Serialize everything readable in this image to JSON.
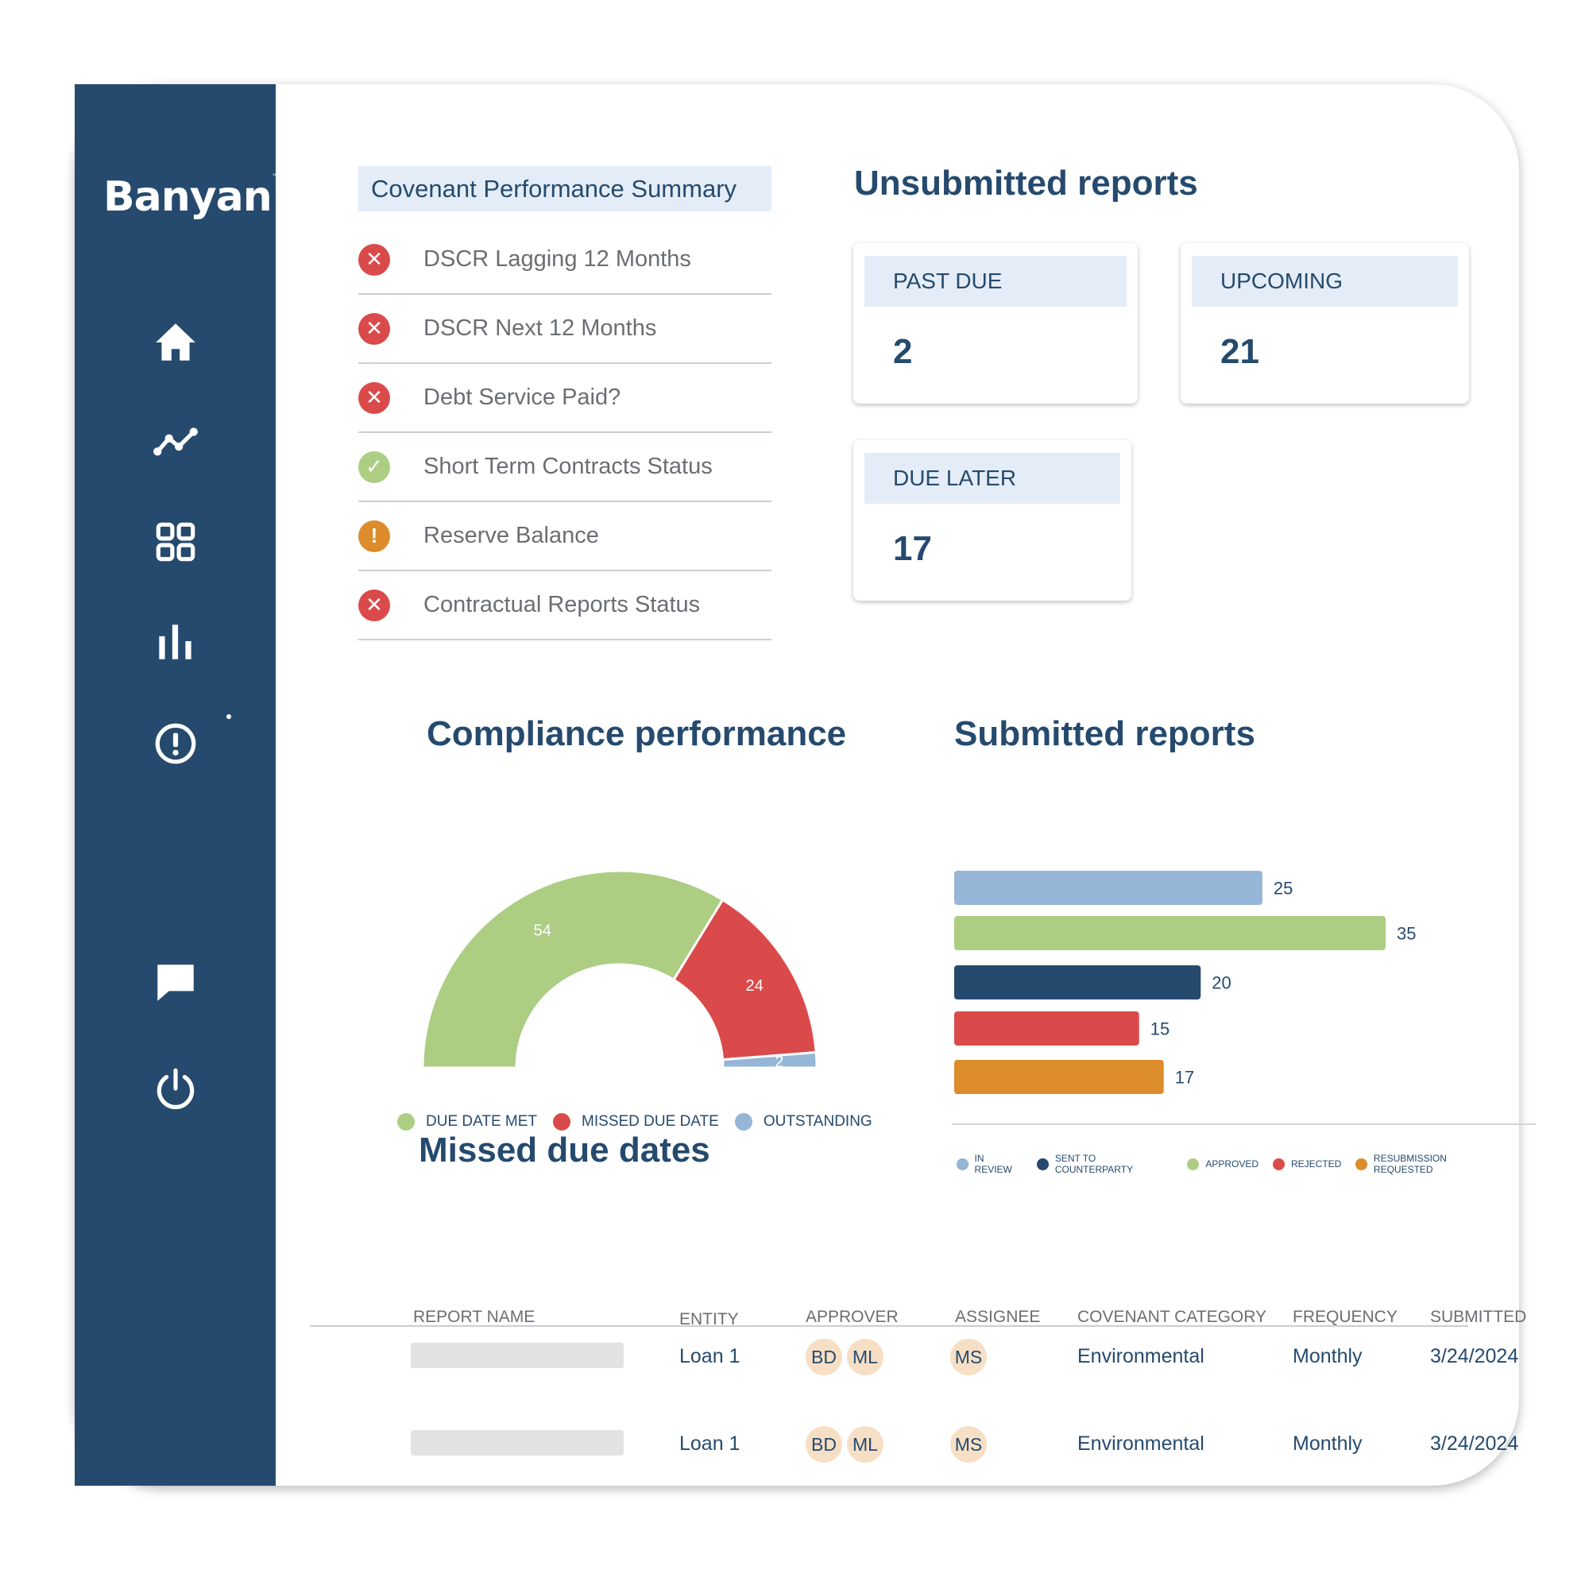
{
  "brand": {
    "name": "Banyan",
    "mark": "™"
  },
  "colors": {
    "navy": "#254a6e",
    "green": "#adcd83",
    "red": "#db4a4a",
    "light_blue": "#95b6d6",
    "orange": "#dc8c2a",
    "header_bg": "#e4edf7",
    "avatar_bg": "#f6dfc5"
  },
  "sidebar": {
    "items": [
      {
        "name": "home",
        "icon": "home-icon"
      },
      {
        "name": "trends",
        "icon": "trend-line-icon"
      },
      {
        "name": "dashboard",
        "icon": "grid-icon"
      },
      {
        "name": "reports",
        "icon": "bar-chart-icon"
      },
      {
        "name": "alerts",
        "icon": "alert-circle-icon"
      },
      {
        "name": "messages",
        "icon": "chat-icon"
      },
      {
        "name": "logout",
        "icon": "power-icon"
      }
    ]
  },
  "covenant_summary": {
    "title": "Covenant Performance Summary",
    "items": [
      {
        "label": "DSCR Lagging 12 Months",
        "status": "fail",
        "symbol": "✕"
      },
      {
        "label": "DSCR Next 12 Months",
        "status": "fail",
        "symbol": "✕"
      },
      {
        "label": "Debt Service Paid?",
        "status": "fail",
        "symbol": "✕"
      },
      {
        "label": "Short Term Contracts Status",
        "status": "pass",
        "symbol": "✓"
      },
      {
        "label": "Reserve Balance",
        "status": "warning",
        "symbol": "!"
      },
      {
        "label": "Contractual Reports Status",
        "status": "fail",
        "symbol": "✕"
      }
    ]
  },
  "unsubmitted": {
    "title": "Unsubmitted reports",
    "past_due": {
      "label": "PAST DUE",
      "value": "2"
    },
    "upcoming": {
      "label": "UPCOMING",
      "value": "21"
    },
    "due_later": {
      "label": "DUE LATER",
      "value": "17"
    }
  },
  "compliance": {
    "title": "Compliance performance"
  },
  "submitted": {
    "title": "Submitted reports"
  },
  "chart_data": [
    {
      "type": "pie",
      "variant": "half-donut",
      "title": "Compliance performance",
      "categories": [
        "DUE DATE MET",
        "MISSED DUE DATE",
        "OUTSTANDING"
      ],
      "values": [
        54,
        24,
        2
      ],
      "colors": [
        "#adcd83",
        "#db4a4a",
        "#95b6d6"
      ],
      "legend": "bottom"
    },
    {
      "type": "bar",
      "orientation": "horizontal",
      "title": "Submitted reports",
      "categories": [
        "IN REVIEW",
        "APPROVED",
        "SENT TO COUNTERPARTY",
        "REJECTED",
        "RESUBMISSION REQUESTED"
      ],
      "values": [
        25,
        35,
        20,
        15,
        17
      ],
      "colors": [
        "#95b6d6",
        "#adcd83",
        "#254a6e",
        "#db4a4a",
        "#dc8c2a"
      ],
      "legend_order": [
        "IN REVIEW",
        "SENT TO COUNTERPARTY",
        "APPROVED",
        "REJECTED",
        "RESUBMISSION REQUESTED"
      ],
      "legend_colors": [
        "#95b6d6",
        "#254a6e",
        "#adcd83",
        "#db4a4a",
        "#dc8c2a"
      ],
      "legend": "bottom",
      "xlim": [
        0,
        35
      ]
    }
  ],
  "missed_due_dates": {
    "title": "Missed due dates",
    "columns": [
      "REPORT NAME",
      "ENTITY",
      "APPROVER",
      "ASSIGNEE",
      "COVENANT CATEGORY",
      "FREQUENCY",
      "SUBMITTED"
    ],
    "rows": [
      {
        "entity": "Loan 1",
        "approvers": [
          "BD",
          "ML"
        ],
        "assignee": "MS",
        "category": "Environmental",
        "frequency": "Monthly",
        "submitted": "3/24/2024"
      },
      {
        "entity": "Loan 1",
        "approvers": [
          "BD",
          "ML"
        ],
        "assignee": "MS",
        "category": "Environmental",
        "frequency": "Monthly",
        "submitted": "3/24/2024"
      }
    ]
  }
}
